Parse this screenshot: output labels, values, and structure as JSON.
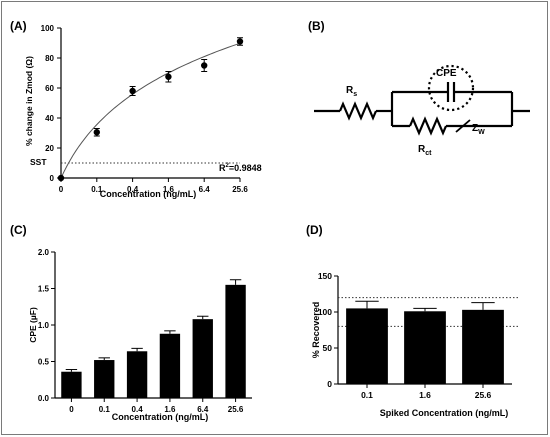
{
  "panels": {
    "a": "(A)",
    "b": "(B)",
    "c": "(C)",
    "d": "(D)"
  },
  "chart_data": [
    {
      "panel": "(A)",
      "type": "scatter",
      "title": "",
      "xlabel": "Concentration (ng/mL)",
      "ylabel": "% change in Zmod (Ω)",
      "x_ticks": [
        "0",
        "0.1",
        "0.4",
        "1.6",
        "6.4",
        "25.6"
      ],
      "y_ticks": [
        0,
        20,
        40,
        60,
        80,
        100
      ],
      "ylim": [
        0,
        100
      ],
      "points": [
        {
          "x": "0",
          "y": 0,
          "err": 0
        },
        {
          "x": "0.1",
          "y": 30.5,
          "err": 2.5
        },
        {
          "x": "0.4",
          "y": 58,
          "err": 3
        },
        {
          "x": "1.6",
          "y": 67.5,
          "err": 3.5
        },
        {
          "x": "6.4",
          "y": 75,
          "err": 4
        },
        {
          "x": "25.6",
          "y": 91,
          "err": 2.5
        }
      ],
      "fit": "log-like curve",
      "sst_label": "SST",
      "sst_value": 10,
      "r2_label": "R",
      "r2_sup": "2",
      "r2_value": "=0.9848",
      "grid": false
    },
    {
      "panel": "(B)",
      "type": "circuit",
      "rs_label": "R",
      "rs_sub": "s",
      "cpe_label": "CPE",
      "rct_label": "R",
      "rct_sub": "ct",
      "zw_label": "Z",
      "zw_sub": "W"
    },
    {
      "panel": "(C)",
      "type": "bar",
      "title": "",
      "xlabel": "Concentration (ng/mL)",
      "ylabel": "CPE (µF)",
      "categories": [
        "0",
        "0.1",
        "0.4",
        "1.6",
        "6.4",
        "25.6"
      ],
      "values": [
        0.36,
        0.52,
        0.64,
        0.88,
        1.08,
        1.55
      ],
      "errors": [
        0.03,
        0.03,
        0.04,
        0.04,
        0.04,
        0.07
      ],
      "y_ticks": [
        "0.0",
        "0.5",
        "1.0",
        "1.5",
        "2.0"
      ],
      "ylim": [
        0,
        2.0
      ],
      "grid": false
    },
    {
      "panel": "(D)",
      "type": "bar",
      "title": "",
      "xlabel": "Spiked Concentration (ng/mL)",
      "ylabel": "% Recovered",
      "categories": [
        "0.1",
        "1.6",
        "25.6"
      ],
      "values": [
        105,
        101,
        103
      ],
      "errors": [
        10,
        4,
        10
      ],
      "y_ticks": [
        0,
        50,
        100,
        150
      ],
      "ylim": [
        0,
        150
      ],
      "reference_lines": [
        80,
        120
      ],
      "grid": false
    }
  ]
}
